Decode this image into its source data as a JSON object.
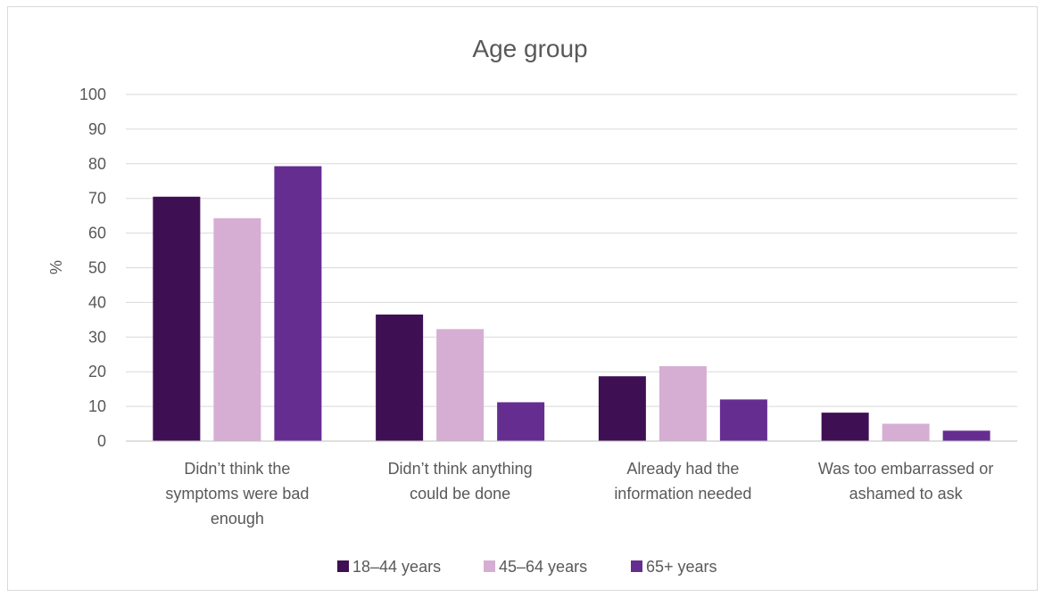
{
  "chart_data": {
    "type": "bar",
    "title": "Age group",
    "ylabel": "%",
    "xlabel": "",
    "ylim": [
      0,
      100
    ],
    "yticks": [
      0,
      10,
      20,
      30,
      40,
      50,
      60,
      70,
      80,
      90,
      100
    ],
    "grid": true,
    "legend_position": "bottom",
    "categories": [
      [
        "Didn’t think the",
        "symptoms were bad",
        "enough"
      ],
      [
        "Didn’t think anything",
        "could be done"
      ],
      [
        "Already had the",
        "information needed"
      ],
      [
        "Was too embarrassed or",
        "ashamed to ask"
      ]
    ],
    "series": [
      {
        "name": "18–44 years",
        "color": "#3f0f54",
        "values": [
          70.5,
          36.5,
          18.7,
          8.2
        ]
      },
      {
        "name": "45–64 years",
        "color": "#d6aed3",
        "values": [
          64.3,
          32.3,
          21.6,
          5.0
        ]
      },
      {
        "name": "65+ years",
        "color": "#662d91",
        "values": [
          79.3,
          11.2,
          12.0,
          3.0
        ]
      }
    ]
  }
}
